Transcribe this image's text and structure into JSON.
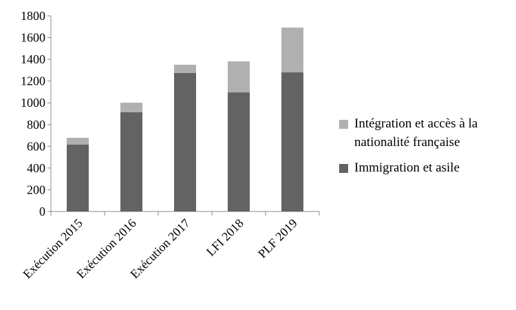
{
  "chart_data": {
    "type": "stacked-bar",
    "categories": [
      "Exécution 2015",
      "Exécution 2016",
      "Exécution 2017",
      "LFI 2018",
      "PLF 2019"
    ],
    "series": [
      {
        "name": "Immigration et asile",
        "color": "#636363",
        "values": [
          615,
          913,
          1274,
          1096,
          1280
        ]
      },
      {
        "name": "Intégration et accès à la nationalité française",
        "color": "#b0b0b0",
        "values": [
          63,
          88,
          76,
          285,
          412
        ]
      }
    ],
    "ylim": [
      0,
      1800
    ],
    "yticks": [
      0,
      200,
      400,
      600,
      800,
      1000,
      1200,
      1400,
      1600,
      1800
    ],
    "grid": false,
    "legend": "right"
  }
}
